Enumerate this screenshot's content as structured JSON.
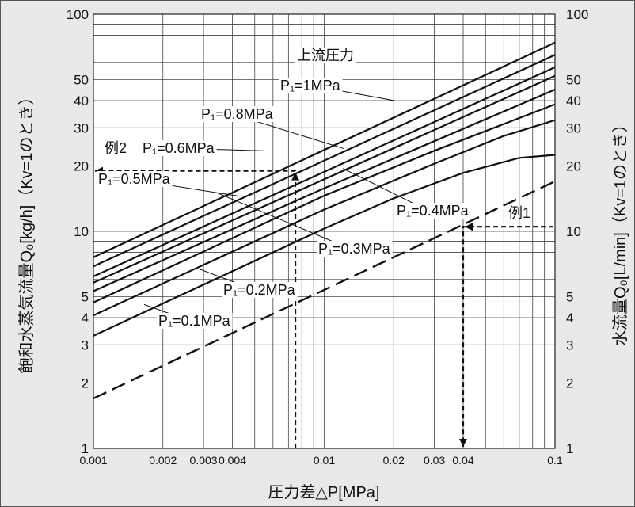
{
  "chart_data": {
    "type": "line",
    "x_scale": "log",
    "y_scale": "log",
    "xlim": [
      0.001,
      0.1
    ],
    "ylim": [
      1,
      100
    ],
    "grid": true,
    "xlabel": "圧力差△P[MPa]",
    "ylabel_left": "飽和水蒸気流量Q₀[kg/h]（Kv=1のとき）",
    "ylabel_right": "水流量Q₀[L/min]（Kv=1のとき）",
    "x_ticks": [
      {
        "value": 0.001,
        "label": "0.001"
      },
      {
        "value": 0.002,
        "label": "0.002"
      },
      {
        "value": 0.003,
        "label": "0.003"
      },
      {
        "value": 0.004,
        "label": "0.004"
      },
      {
        "value": 0.01,
        "label": "0.01"
      },
      {
        "value": 0.02,
        "label": "0.02"
      },
      {
        "value": 0.03,
        "label": "0.03"
      },
      {
        "value": 0.04,
        "label": "0.04"
      },
      {
        "value": 0.1,
        "label": "0.1"
      }
    ],
    "y_ticks": [
      {
        "value": 1,
        "label": "1"
      },
      {
        "value": 2,
        "label": "2"
      },
      {
        "value": 3,
        "label": "3"
      },
      {
        "value": 4,
        "label": "4"
      },
      {
        "value": 5,
        "label": "5"
      },
      {
        "value": 10,
        "label": "10"
      },
      {
        "value": 20,
        "label": "20"
      },
      {
        "value": 30,
        "label": "30"
      },
      {
        "value": 40,
        "label": "40"
      },
      {
        "value": 50,
        "label": "50"
      },
      {
        "value": 100,
        "label": "100"
      }
    ],
    "upstream_label": "上流圧力",
    "series": [
      {
        "name": "P₁=1MPa",
        "style": "solid",
        "points": [
          [
            0.001,
            7.6
          ],
          [
            0.1,
            74
          ]
        ]
      },
      {
        "name": "P₁=0.8MPa",
        "style": "solid",
        "points": [
          [
            0.001,
            6.9
          ],
          [
            0.1,
            65
          ]
        ]
      },
      {
        "name": "P₁=0.6MPa",
        "style": "solid",
        "points": [
          [
            0.001,
            6.2
          ],
          [
            0.1,
            57
          ]
        ]
      },
      {
        "name": "P₁=0.5MPa",
        "style": "solid",
        "points": [
          [
            0.001,
            5.8
          ],
          [
            0.1,
            52
          ]
        ]
      },
      {
        "name": "P₁=0.4MPa",
        "style": "solid",
        "points": [
          [
            0.001,
            5.3
          ],
          [
            0.01,
            15.8
          ],
          [
            0.1,
            45
          ]
        ]
      },
      {
        "name": "P₁=0.3MPa",
        "style": "solid",
        "points": [
          [
            0.001,
            4.7
          ],
          [
            0.01,
            14.6
          ],
          [
            0.03,
            23.5
          ],
          [
            0.1,
            38.5
          ]
        ]
      },
      {
        "name": "P₁=0.2MPa",
        "style": "solid",
        "points": [
          [
            0.001,
            4.1
          ],
          [
            0.01,
            12.6
          ],
          [
            0.03,
            20.5
          ],
          [
            0.06,
            27.5
          ],
          [
            0.1,
            32.5
          ]
        ]
      },
      {
        "name": "P₁=0.1MPa",
        "style": "solid",
        "points": [
          [
            0.001,
            3.3
          ],
          [
            0.01,
            10.3
          ],
          [
            0.02,
            14.2
          ],
          [
            0.04,
            18.6
          ],
          [
            0.07,
            21.8
          ],
          [
            0.1,
            22.5
          ]
        ]
      },
      {
        "name": "水",
        "style": "dashed",
        "points": [
          [
            0.001,
            1.7
          ],
          [
            0.1,
            17
          ]
        ]
      }
    ],
    "examples": [
      {
        "name": "例1",
        "dp": 0.04,
        "value": 10.5
      },
      {
        "name": "例2",
        "dp": 0.0075,
        "value": 19
      }
    ]
  }
}
